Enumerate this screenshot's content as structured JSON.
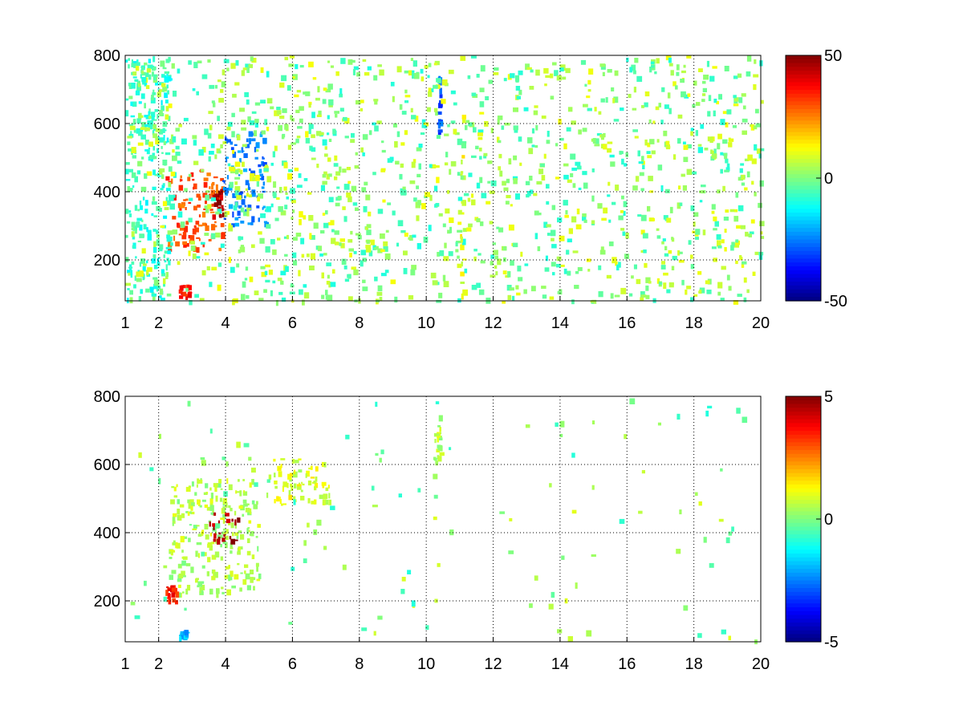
{
  "chart_data": [
    {
      "type": "heatmap",
      "title": "",
      "xlabel": "",
      "ylabel": "",
      "xlim": [
        1,
        20
      ],
      "ylim": [
        80,
        800
      ],
      "x_ticks": [
        1,
        2,
        4,
        6,
        8,
        10,
        12,
        14,
        16,
        18,
        20
      ],
      "x_tick_labels": [
        "1",
        "2",
        "4",
        "6",
        "8",
        "10",
        "12",
        "14",
        "16",
        "18",
        "20"
      ],
      "y_ticks": [
        200,
        400,
        600,
        800
      ],
      "y_tick_labels": [
        "200",
        "400",
        "600",
        "800"
      ],
      "grid": true,
      "grid_style": "dotted",
      "colormap": "jet",
      "clim": [
        -50,
        50
      ],
      "colorbar_ticks": [
        50,
        0,
        -50
      ],
      "colorbar_tick_labels": [
        "50",
        "0",
        "-50"
      ],
      "features": [
        {
          "x_range": [
            2.2,
            3.9
          ],
          "y_range": [
            230,
            470
          ],
          "value": 30
        },
        {
          "x_range": [
            3.6,
            3.9
          ],
          "y_range": [
            330,
            420
          ],
          "value": 45
        },
        {
          "x_range": [
            2.6,
            2.9
          ],
          "y_range": [
            95,
            130
          ],
          "value": 35
        },
        {
          "x_range": [
            3.9,
            5.2
          ],
          "y_range": [
            300,
            580
          ],
          "value": -25
        },
        {
          "x_range": [
            1.0,
            2.3
          ],
          "y_range": [
            80,
            800
          ],
          "value": -8
        },
        {
          "x_range": [
            10.3,
            10.4
          ],
          "y_range": [
            580,
            740
          ],
          "value": -30
        },
        {
          "x_range": [
            11.0,
            11.1
          ],
          "y_range": [
            80,
            680
          ],
          "value": 10
        }
      ]
    },
    {
      "type": "heatmap",
      "title": "",
      "xlabel": "",
      "ylabel": "",
      "xlim": [
        1,
        20
      ],
      "ylim": [
        80,
        800
      ],
      "x_ticks": [
        1,
        2,
        4,
        6,
        8,
        10,
        12,
        14,
        16,
        18,
        20
      ],
      "x_tick_labels": [
        "1",
        "2",
        "4",
        "6",
        "8",
        "10",
        "12",
        "14",
        "16",
        "18",
        "20"
      ],
      "y_ticks": [
        200,
        400,
        600,
        800
      ],
      "y_tick_labels": [
        "200",
        "400",
        "600",
        "800"
      ],
      "grid": true,
      "grid_style": "dotted",
      "colormap": "jet",
      "clim": [
        -5,
        5
      ],
      "colorbar_ticks": [
        5,
        0,
        -5
      ],
      "colorbar_tick_labels": [
        "5",
        "0",
        "-5"
      ],
      "features": [
        {
          "x_range": [
            2.3,
            5.0
          ],
          "y_range": [
            220,
            560
          ],
          "value": 0.5
        },
        {
          "x_range": [
            3.5,
            4.4
          ],
          "y_range": [
            380,
            460
          ],
          "value": 4.5
        },
        {
          "x_range": [
            2.2,
            2.5
          ],
          "y_range": [
            200,
            250
          ],
          "value": 3.5
        },
        {
          "x_range": [
            2.6,
            2.8
          ],
          "y_range": [
            95,
            115
          ],
          "value": -2
        },
        {
          "x_range": [
            10.2,
            10.4
          ],
          "y_range": [
            610,
            720
          ],
          "value": 0.5
        },
        {
          "x_range": [
            5.2,
            7.2
          ],
          "y_range": [
            480,
            620
          ],
          "value": 1
        }
      ]
    }
  ]
}
